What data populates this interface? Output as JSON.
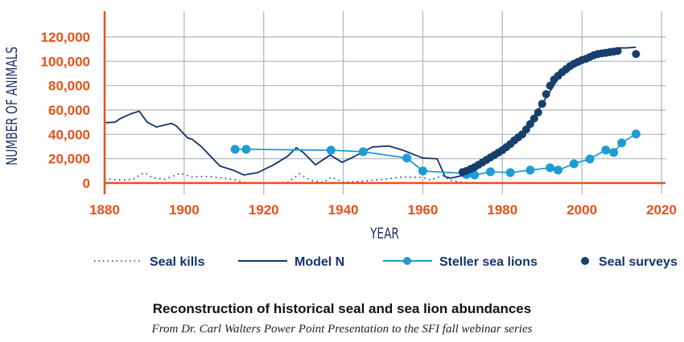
{
  "chart_data": {
    "type": "line",
    "title": "Reconstruction of historical seal and sea lion abundances",
    "subtitle": "From Dr. Carl Walters Power Point Presentation to the SFI fall webinar series",
    "xlabel": "YEAR",
    "ylabel": "NUMBER OF ANIMALS",
    "xlim": [
      1880,
      2020
    ],
    "ylim": [
      0,
      120000
    ],
    "x_ticks": [
      "1880",
      "1900",
      "1920",
      "1940",
      "1960",
      "1980",
      "2000",
      "2020"
    ],
    "y_ticks": [
      "0",
      "20,000",
      "40,000",
      "60,000",
      "80,000",
      "100,000",
      "120,000"
    ],
    "grid": true,
    "legend_position": "bottom",
    "colors": {
      "axis": "#e8501a",
      "grid": "#aab5c2",
      "dark": "#14336a",
      "light": "#1f9bd4",
      "surveys": "#173f6b"
    },
    "series": [
      {
        "name": "Seal kills",
        "style": "dotted",
        "x": [
          1880,
          1884,
          1887,
          1890,
          1892,
          1895,
          1899,
          1902,
          1906,
          1910,
          1913,
          1915,
          1920,
          1926,
          1929,
          1932,
          1935,
          1937,
          1940,
          1945,
          1950,
          1955,
          1960,
          1962,
          1965,
          1967,
          1970,
          1975,
          2010
        ],
        "y": [
          3500,
          2500,
          3000,
          8500,
          4500,
          3000,
          8000,
          5000,
          5500,
          4000,
          2500,
          500,
          0,
          500,
          7500,
          2000,
          500,
          5000,
          500,
          1500,
          3000,
          5000,
          4500,
          2500,
          6000,
          2000,
          500,
          0,
          0
        ]
      },
      {
        "name": "Model N",
        "style": "line",
        "x": [
          1880,
          1882.6,
          1884,
          1886.7,
          1888.7,
          1890.7,
          1893,
          1896.8,
          1898,
          1900.9,
          1902,
          1904.3,
          1909,
          1912.4,
          1915,
          1918.5,
          1922.5,
          1926,
          1928.2,
          1930,
          1933,
          1936.7,
          1939.7,
          1942,
          1947.4,
          1951.5,
          1955,
          1960,
          1963.6,
          1965.6,
          1967,
          1969.7,
          1975,
          1980,
          1985,
          1990,
          1995,
          2000,
          2005,
          2009.5,
          2011,
          2013.6
        ],
        "y": [
          49500,
          50000,
          53000,
          57000,
          59000,
          50000,
          46000,
          49000,
          47000,
          37000,
          36000,
          30000,
          14000,
          10500,
          6600,
          8600,
          15000,
          22000,
          29000,
          25000,
          15000,
          23000,
          17000,
          20500,
          29700,
          30400,
          27000,
          20500,
          20000,
          5300,
          4000,
          6000,
          17000,
          27000,
          40000,
          65000,
          91000,
          101000,
          106500,
          111000,
          111000,
          111500
        ]
      },
      {
        "name": "Steller sea lions",
        "style": "line-markers",
        "x": [
          1912.8,
          1915.6,
          1936.9,
          1945,
          1956,
          1960,
          1970.5,
          1971,
          1973,
          1977,
          1982,
          1987,
          1992,
          1994,
          1998,
          2002,
          2006,
          2008,
          2010,
          2013.6
        ],
        "y": [
          27700,
          27700,
          27000,
          25700,
          20500,
          9900,
          7900,
          7000,
          6600,
          9200,
          8600,
          10600,
          12500,
          10600,
          15800,
          19800,
          27100,
          25100,
          33000,
          40300
        ]
      },
      {
        "name": "Seal surveys",
        "style": "markers",
        "x": [
          1970,
          1971,
          1972,
          1973,
          1974,
          1975,
          1976,
          1977,
          1978,
          1979,
          1980,
          1981,
          1982,
          1983,
          1984,
          1985,
          1986,
          1987,
          1988,
          1989,
          1990,
          1991,
          1992,
          1993,
          1994,
          1995,
          1996,
          1997,
          1998,
          1999,
          2000,
          2001,
          2002,
          2003,
          2004,
          2005,
          2006,
          2007,
          2008,
          2009,
          2013.6
        ],
        "y": [
          9000,
          10000,
          11500,
          13000,
          15000,
          17000,
          19000,
          21000,
          23000,
          25000,
          27000,
          29500,
          32000,
          35000,
          37500,
          40000,
          44000,
          48500,
          53000,
          58000,
          65000,
          73000,
          80000,
          85000,
          88000,
          91000,
          93500,
          96000,
          98000,
          99500,
          101000,
          102000,
          103500,
          105000,
          106000,
          106500,
          107000,
          107500,
          108000,
          108500,
          106000
        ]
      }
    ]
  }
}
